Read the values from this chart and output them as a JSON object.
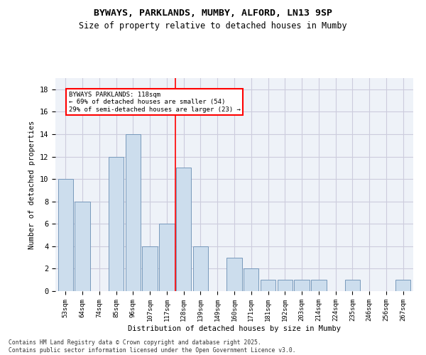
{
  "title": "BYWAYS, PARKLANDS, MUMBY, ALFORD, LN13 9SP",
  "subtitle": "Size of property relative to detached houses in Mumby",
  "xlabel": "Distribution of detached houses by size in Mumby",
  "ylabel": "Number of detached properties",
  "categories": [
    "53sqm",
    "64sqm",
    "74sqm",
    "85sqm",
    "96sqm",
    "107sqm",
    "117sqm",
    "128sqm",
    "139sqm",
    "149sqm",
    "160sqm",
    "171sqm",
    "181sqm",
    "192sqm",
    "203sqm",
    "214sqm",
    "224sqm",
    "235sqm",
    "246sqm",
    "256sqm",
    "267sqm"
  ],
  "values": [
    10,
    8,
    0,
    12,
    14,
    4,
    6,
    11,
    4,
    0,
    3,
    2,
    1,
    1,
    1,
    1,
    0,
    1,
    0,
    0,
    1
  ],
  "bar_color": "#ccdded",
  "bar_edge_color": "#7799bb",
  "red_line_x": 6.5,
  "annotation_text": "BYWAYS PARKLANDS: 118sqm\n← 69% of detached houses are smaller (54)\n29% of semi-detached houses are larger (23) →",
  "annotation_box_color": "white",
  "annotation_box_edge_color": "red",
  "grid_color": "#ccccdd",
  "background_color": "#eef2f8",
  "ylim": [
    0,
    19
  ],
  "yticks": [
    0,
    2,
    4,
    6,
    8,
    10,
    12,
    14,
    16,
    18
  ],
  "footer": "Contains HM Land Registry data © Crown copyright and database right 2025.\nContains public sector information licensed under the Open Government Licence v3.0."
}
